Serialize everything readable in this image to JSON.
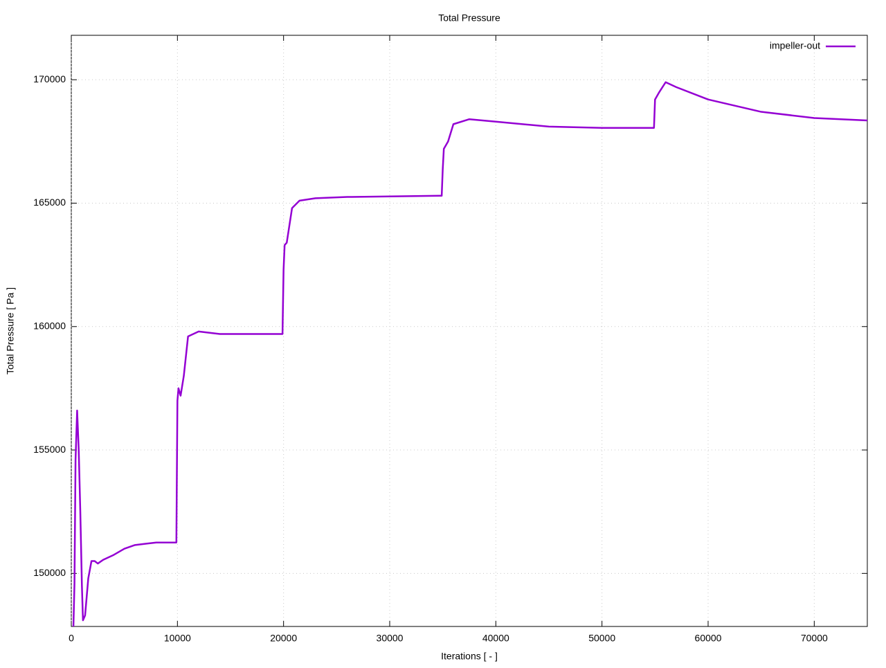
{
  "chart_data": {
    "type": "line",
    "title": "Total Pressure",
    "x_label": "Iterations [ - ]",
    "y_label": "Total Pressure [ Pa ]",
    "x": [
      200,
      300,
      400,
      550,
      700,
      850,
      1000,
      1100,
      1300,
      1600,
      1900,
      2200,
      2500,
      3000,
      4000,
      5000,
      6000,
      7000,
      8000,
      9900,
      10000,
      10100,
      10300,
      10600,
      11000,
      12000,
      14000,
      19900,
      20000,
      20100,
      20300,
      20800,
      21500,
      23000,
      26000,
      34900,
      35000,
      35100,
      35500,
      36000,
      37500,
      40000,
      45000,
      50000,
      54900,
      55000,
      55400,
      56000,
      57000,
      60000,
      65000,
      70000,
      75000
    ],
    "series": [
      {
        "name": "impeller-out",
        "color": "#9400d3",
        "values": [
          147850,
          149600,
          154600,
          156600,
          155000,
          152500,
          149500,
          148100,
          148300,
          149800,
          150500,
          150500,
          150400,
          150550,
          150750,
          151000,
          151150,
          151200,
          151250,
          151250,
          157000,
          157500,
          157200,
          158000,
          159600,
          159800,
          159700,
          159700,
          162300,
          163300,
          163400,
          164800,
          165100,
          165200,
          165250,
          165300,
          166400,
          167200,
          167500,
          168200,
          168400,
          168300,
          168100,
          168050,
          168050,
          169200,
          169500,
          169900,
          169700,
          169200,
          168700,
          168450,
          168350
        ]
      }
    ],
    "xlim": [
      0,
      75000
    ],
    "xticks": [
      0,
      10000,
      20000,
      30000,
      40000,
      50000,
      60000,
      70000
    ],
    "ylim": [
      147850,
      171800
    ],
    "yticks": [
      150000,
      155000,
      160000,
      165000,
      170000
    ],
    "grid": true,
    "legend": "top-right"
  }
}
